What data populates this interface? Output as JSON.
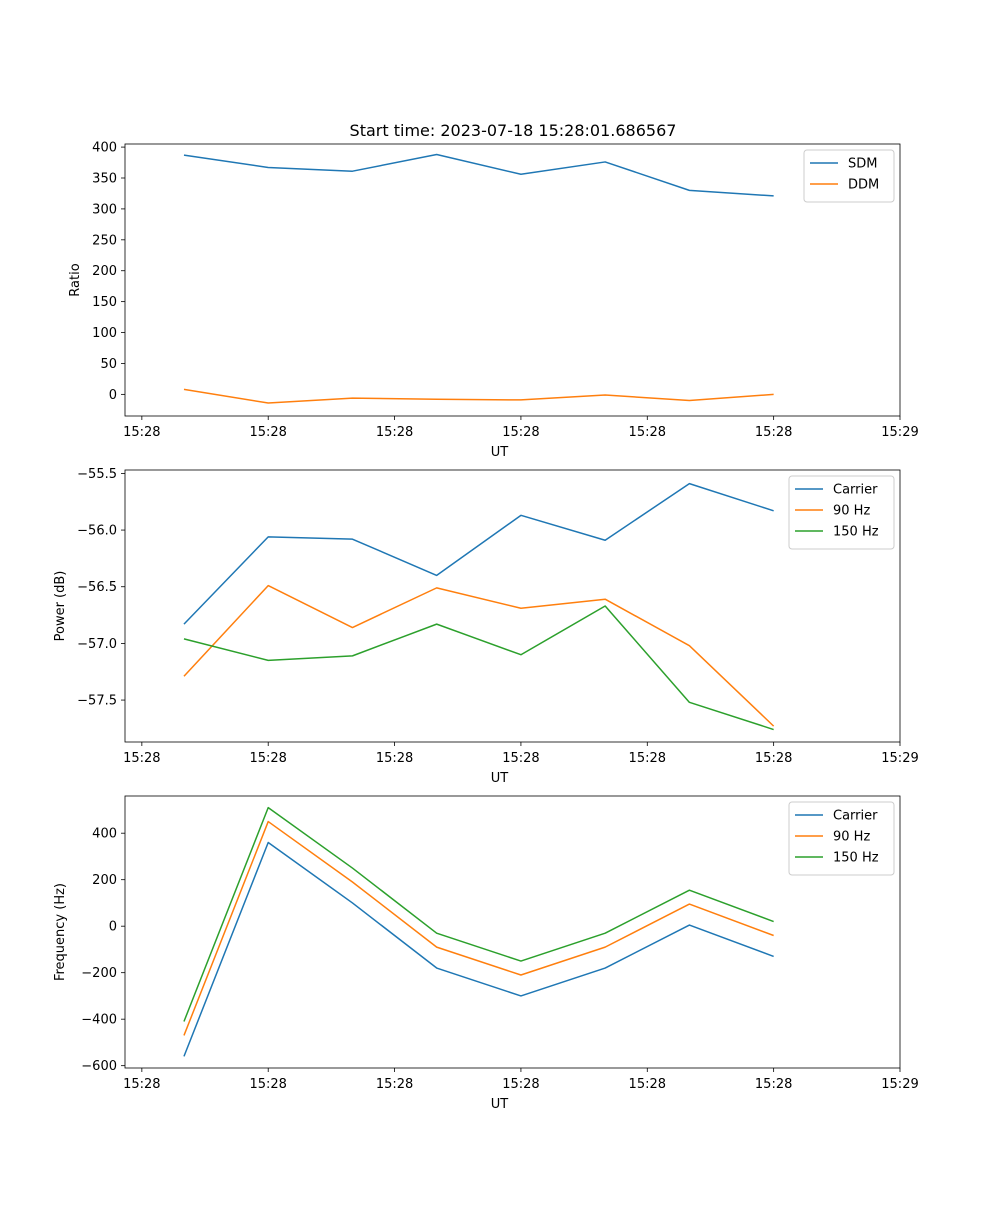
{
  "figure_title": "Start time: 2023-07-18 15:28:01.686567",
  "colors": {
    "blue": "#1f77b4",
    "orange": "#ff7f0e",
    "green": "#2ca02c",
    "axis": "#000000",
    "background": "#ffffff"
  },
  "chart_data": [
    {
      "type": "line",
      "title": "Start time: 2023-07-18 15:28:01.686567",
      "xlabel": "UT",
      "ylabel": "Ratio",
      "x_tick_labels": [
        "15:28",
        "15:28",
        "15:28",
        "15:28",
        "15:28",
        "15:28",
        "15:29"
      ],
      "x_tick_index": [
        -0.5,
        1,
        2.5,
        4,
        5.5,
        7,
        8.5
      ],
      "xlim": [
        -0.7,
        8.5
      ],
      "ylim": [
        -35,
        405
      ],
      "yticks": [
        0,
        50,
        100,
        150,
        200,
        250,
        300,
        350,
        400
      ],
      "ytick_labels": [
        "0",
        "50",
        "100",
        "150",
        "200",
        "250",
        "300",
        "350",
        "400"
      ],
      "legend": "upper right",
      "series": [
        {
          "name": "SDM",
          "color": "#1f77b4",
          "x": [
            0,
            1,
            2,
            3,
            4,
            5,
            6,
            7
          ],
          "values": [
            387,
            367,
            361,
            388,
            356,
            376,
            330,
            321
          ]
        },
        {
          "name": "DDM",
          "color": "#ff7f0e",
          "x": [
            0,
            1,
            2,
            3,
            4,
            5,
            6,
            7
          ],
          "values": [
            8,
            -14,
            -6,
            -8,
            -9,
            -1,
            -10,
            0
          ]
        }
      ]
    },
    {
      "type": "line",
      "title": "",
      "xlabel": "UT",
      "ylabel": "Power (dB)",
      "x_tick_labels": [
        "15:28",
        "15:28",
        "15:28",
        "15:28",
        "15:28",
        "15:28",
        "15:29"
      ],
      "x_tick_index": [
        -0.5,
        1,
        2.5,
        4,
        5.5,
        7,
        8.5
      ],
      "xlim": [
        -0.7,
        8.5
      ],
      "ylim": [
        -57.87,
        -55.47
      ],
      "yticks": [
        -57.5,
        -57.0,
        -56.5,
        -56.0,
        -55.5
      ],
      "ytick_labels": [
        "−57.5",
        "−57.0",
        "−56.5",
        "−56.0",
        "−55.5"
      ],
      "legend": "upper right",
      "series": [
        {
          "name": "Carrier",
          "color": "#1f77b4",
          "x": [
            0,
            1,
            2,
            3,
            4,
            5,
            6,
            7
          ],
          "values": [
            -56.83,
            -56.06,
            -56.08,
            -56.4,
            -55.87,
            -56.09,
            -55.59,
            -55.83
          ]
        },
        {
          "name": "90 Hz",
          "color": "#ff7f0e",
          "x": [
            0,
            1,
            2,
            3,
            4,
            5,
            6,
            7
          ],
          "values": [
            -57.29,
            -56.49,
            -56.86,
            -56.51,
            -56.69,
            -56.61,
            -57.02,
            -57.73
          ]
        },
        {
          "name": "150 Hz",
          "color": "#2ca02c",
          "x": [
            0,
            1,
            2,
            3,
            4,
            5,
            6,
            7
          ],
          "values": [
            -56.96,
            -57.15,
            -57.11,
            -56.83,
            -57.1,
            -56.67,
            -57.52,
            -57.76
          ]
        }
      ]
    },
    {
      "type": "line",
      "title": "",
      "xlabel": "UT",
      "ylabel": "Frequency (Hz)",
      "x_tick_labels": [
        "15:28",
        "15:28",
        "15:28",
        "15:28",
        "15:28",
        "15:28",
        "15:29"
      ],
      "x_tick_index": [
        -0.5,
        1,
        2.5,
        4,
        5.5,
        7,
        8.5
      ],
      "xlim": [
        -0.7,
        8.5
      ],
      "ylim": [
        -610,
        560
      ],
      "yticks": [
        -600,
        -400,
        -200,
        0,
        200,
        400
      ],
      "ytick_labels": [
        "−600",
        "−400",
        "−200",
        "0",
        "200",
        "400"
      ],
      "legend": "upper right",
      "series": [
        {
          "name": "Carrier",
          "color": "#1f77b4",
          "x": [
            0,
            1,
            2,
            3,
            4,
            5,
            6,
            7
          ],
          "values": [
            -560,
            360,
            100,
            -180,
            -300,
            -180,
            5,
            -130
          ]
        },
        {
          "name": "90 Hz",
          "color": "#ff7f0e",
          "x": [
            0,
            1,
            2,
            3,
            4,
            5,
            6,
            7
          ],
          "values": [
            -470,
            450,
            190,
            -90,
            -210,
            -90,
            95,
            -40
          ]
        },
        {
          "name": "150 Hz",
          "color": "#2ca02c",
          "x": [
            0,
            1,
            2,
            3,
            4,
            5,
            6,
            7
          ],
          "values": [
            -410,
            510,
            250,
            -30,
            -150,
            -30,
            155,
            20
          ]
        }
      ]
    }
  ]
}
